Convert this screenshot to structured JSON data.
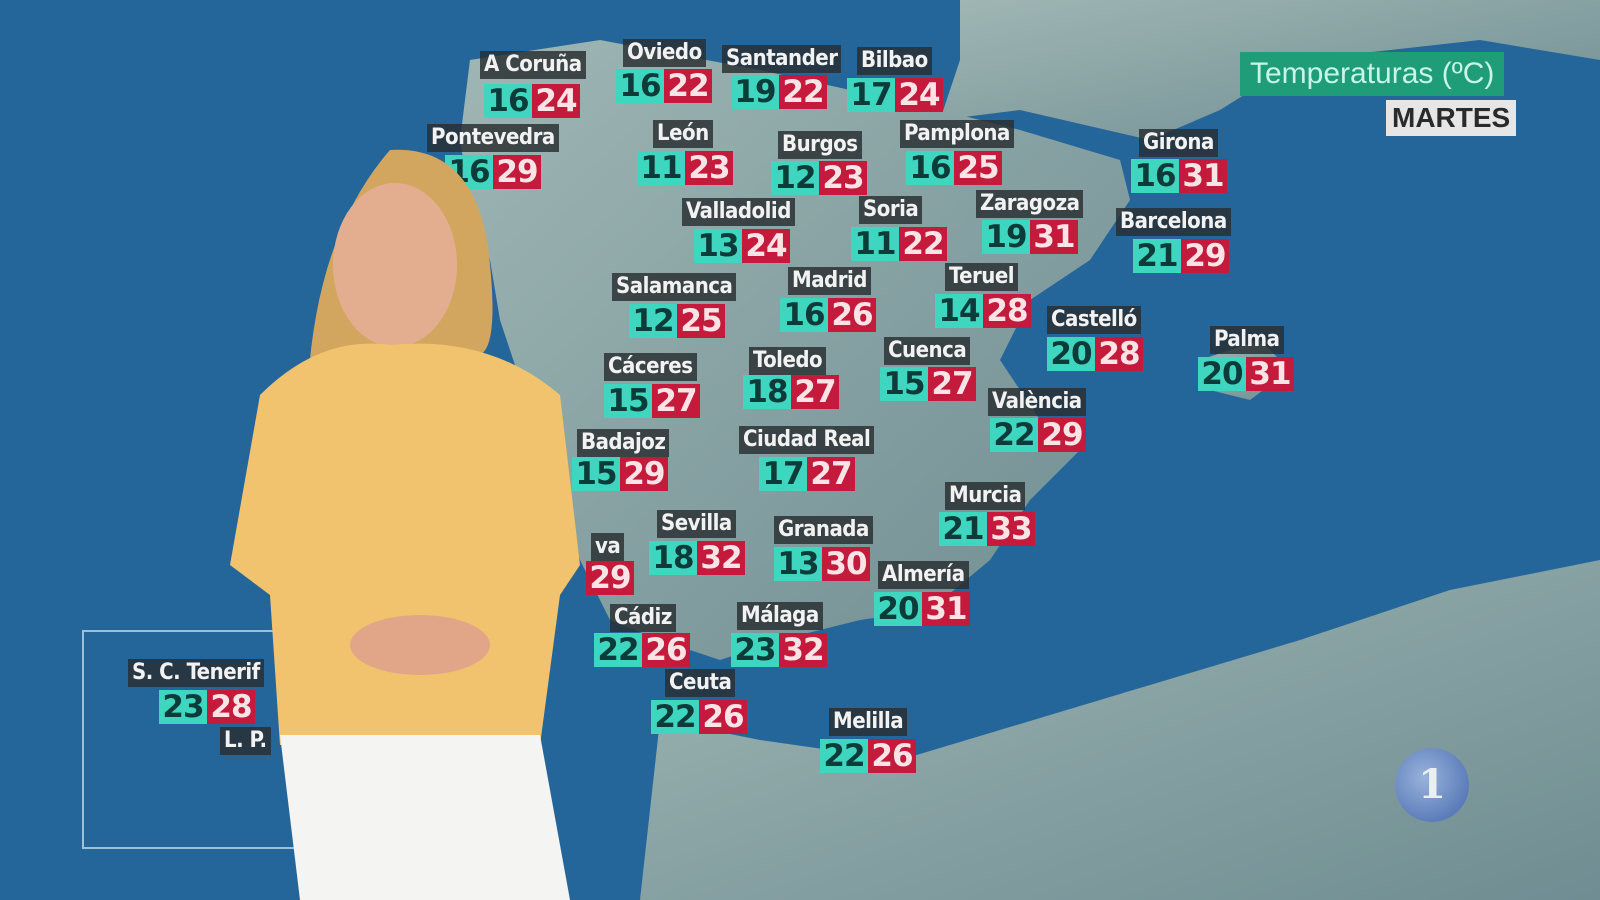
{
  "title": "Temperaturas (ºC)",
  "day": "MARTES",
  "channel_logo": "1",
  "colors": {
    "sea": "#25669a",
    "land": "#8aa3a6",
    "min_temp": "#3fd6c0",
    "max_temp": "#c41a3b",
    "title_bg": "#1f9c78"
  },
  "cities": [
    {
      "name": "A Coruña",
      "min": "16",
      "max": "24"
    },
    {
      "name": "Oviedo",
      "min": "16",
      "max": "22"
    },
    {
      "name": "Santander",
      "min": "19",
      "max": "22"
    },
    {
      "name": "Bilbao",
      "min": "17",
      "max": "24"
    },
    {
      "name": "Pontevedra",
      "min": "16",
      "max": "29"
    },
    {
      "name": "León",
      "min": "11",
      "max": "23"
    },
    {
      "name": "Burgos",
      "min": "12",
      "max": "23"
    },
    {
      "name": "Pamplona",
      "min": "16",
      "max": "25"
    },
    {
      "name": "Girona",
      "min": "16",
      "max": "31"
    },
    {
      "name": "Valladolid",
      "min": "13",
      "max": "24"
    },
    {
      "name": "Soria",
      "min": "11",
      "max": "22"
    },
    {
      "name": "Zaragoza",
      "min": "19",
      "max": "31"
    },
    {
      "name": "Barcelona",
      "min": "21",
      "max": "29"
    },
    {
      "name": "Salamanca",
      "min": "12",
      "max": "25"
    },
    {
      "name": "Madrid",
      "min": "16",
      "max": "26"
    },
    {
      "name": "Teruel",
      "min": "14",
      "max": "28"
    },
    {
      "name": "Castelló",
      "min": "20",
      "max": "28"
    },
    {
      "name": "Palma",
      "min": "20",
      "max": "31"
    },
    {
      "name": "Cáceres",
      "min": "15",
      "max": "27"
    },
    {
      "name": "Toledo",
      "min": "18",
      "max": "27"
    },
    {
      "name": "Cuenca",
      "min": "15",
      "max": "27"
    },
    {
      "name": "València",
      "min": "22",
      "max": "29"
    },
    {
      "name": "Badajoz",
      "min": "15",
      "max": "29"
    },
    {
      "name": "Ciudad Real",
      "min": "17",
      "max": "27"
    },
    {
      "name": "Murcia",
      "min": "21",
      "max": "33"
    },
    {
      "name": "Sevilla",
      "min": "18",
      "max": "32"
    },
    {
      "name": "Granada",
      "min": "13",
      "max": "30"
    },
    {
      "name": "va",
      "min": "",
      "max": "29"
    },
    {
      "name": "Almería",
      "min": "20",
      "max": "31"
    },
    {
      "name": "Cádiz",
      "min": "22",
      "max": "26"
    },
    {
      "name": "Málaga",
      "min": "23",
      "max": "32"
    },
    {
      "name": "Ceuta",
      "min": "22",
      "max": "26"
    },
    {
      "name": "Melilla",
      "min": "22",
      "max": "26"
    },
    {
      "name": "S. C. Tenerif",
      "min": "23",
      "max": "28"
    },
    {
      "name": "L. P.",
      "min": "",
      "max": ""
    }
  ]
}
